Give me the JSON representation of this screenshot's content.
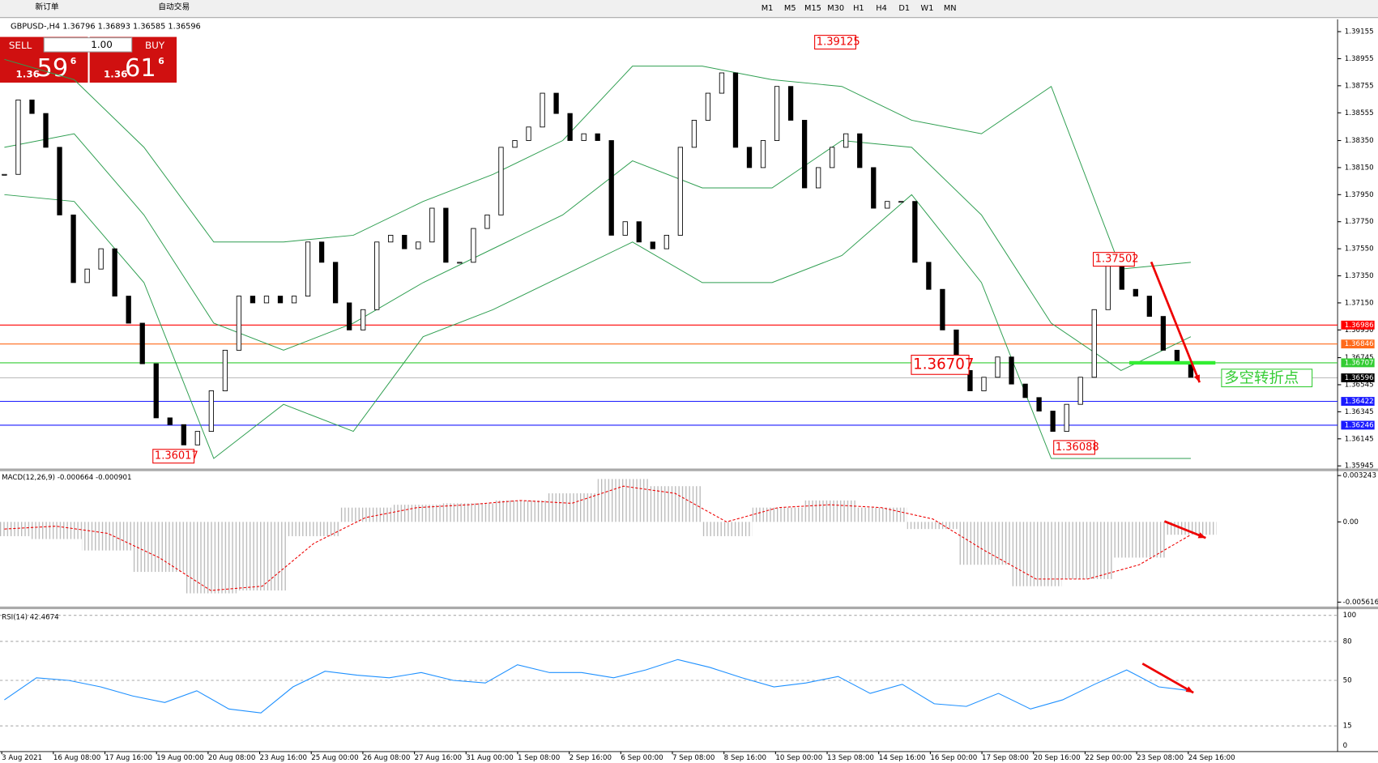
{
  "toolbar": {
    "new_order": "新订单",
    "auto_trade": "自动交易",
    "timeframes": [
      "M1",
      "M5",
      "M15",
      "M30",
      "H1",
      "H4",
      "D1",
      "W1",
      "MN"
    ]
  },
  "trade_panel": {
    "sell": "SELL",
    "buy": "BUY",
    "lots": "1.00",
    "sell_big": "1.36",
    "sell_main": "59",
    "sell_sup": "6",
    "buy_big": "1.36",
    "buy_main": "61",
    "buy_sup": "6"
  },
  "chart_data": {
    "type": "candlestick",
    "header": "GBPUSD-,H4  1.36796 1.36893 1.36585 1.36596",
    "close": [
      1.381,
      1.3865,
      1.3855,
      1.383,
      1.378,
      1.373,
      1.374,
      1.3755,
      1.372,
      1.37,
      1.367,
      1.363,
      1.3625,
      1.361,
      1.362,
      1.365,
      1.368,
      1.372,
      1.3715,
      1.372,
      1.3715,
      1.372,
      1.376,
      1.3745,
      1.3715,
      1.3695,
      1.371,
      1.376,
      1.3765,
      1.3755,
      1.376,
      1.3785,
      1.3745,
      1.3745,
      1.377,
      1.378,
      1.383,
      1.3835,
      1.3845,
      1.387,
      1.3855,
      1.3835,
      1.384,
      1.3835,
      1.3765,
      1.3775,
      1.376,
      1.3755,
      1.3765,
      1.383,
      1.385,
      1.387,
      1.3885,
      1.383,
      1.3815,
      1.3835,
      1.3875,
      1.385,
      1.38,
      1.3815,
      1.383,
      1.384,
      1.3815,
      1.3785,
      1.379,
      1.379,
      1.3745,
      1.3725,
      1.3695,
      1.3665,
      1.365,
      1.366,
      1.3675,
      1.3655,
      1.3645,
      1.3635,
      1.362,
      1.364,
      1.366,
      1.371,
      1.3745,
      1.3725,
      1.372,
      1.3705,
      1.368,
      1.367,
      1.366
    ],
    "bands": {
      "upper": [
        1.3895,
        1.388,
        1.383,
        1.376,
        1.376,
        1.3765,
        1.379,
        1.381,
        1.3835,
        1.389,
        1.389,
        1.388,
        1.3875,
        1.385,
        1.384,
        1.3875,
        1.374,
        1.3745
      ],
      "middle": [
        1.383,
        1.384,
        1.378,
        1.37,
        1.368,
        1.37,
        1.373,
        1.3755,
        1.378,
        1.382,
        1.38,
        1.38,
        1.3835,
        1.383,
        1.378,
        1.37,
        1.3665,
        1.369
      ],
      "lower": [
        1.3795,
        1.379,
        1.373,
        1.36,
        1.364,
        1.362,
        1.369,
        1.371,
        1.3735,
        1.376,
        1.373,
        1.373,
        1.375,
        1.3795,
        1.373,
        1.36,
        1.36,
        1.36
      ]
    },
    "ylim": [
      1.35945,
      1.39155
    ],
    "yticks": [
      1.39155,
      1.38955,
      1.38755,
      1.38555,
      {
        "value": 1.3835,
        "label": "1.38350"
      },
      {
        "value": 1.3815,
        "label": "1.38150"
      },
      {
        "value": 1.3795,
        "label": "1.37950"
      },
      {
        "value": 1.3775,
        "label": "1.37750"
      },
      {
        "value": 1.3755,
        "label": "1.37550"
      },
      {
        "value": 1.3735,
        "label": "1.37350"
      },
      {
        "value": 1.3715,
        "label": "1.37150"
      },
      {
        "value": 1.3695,
        "label": "1.36950"
      },
      1.36745,
      1.36545,
      1.36345,
      1.36145,
      1.35945
    ],
    "levels": [
      {
        "value": 1.36986,
        "color": "#ff0000"
      },
      {
        "value": 1.36846,
        "color": "#ff6a1a"
      },
      {
        "value": 1.36707,
        "color": "#33cc33"
      },
      {
        "value": 1.36596,
        "color": "#000000"
      },
      {
        "value": 1.36422,
        "color": "#1a1aff"
      },
      {
        "value": 1.36246,
        "color": "#1a1aff"
      }
    ],
    "annotations": [
      1.39125,
      1.37502,
      1.36707,
      1.36017,
      1.36088
    ],
    "note": "多空转折点",
    "x_labels": [
      "3 Aug 2021",
      "16 Aug 08:00",
      "17 Aug 16:00",
      "19 Aug 00:00",
      "20 Aug 08:00",
      "23 Aug 16:00",
      "25 Aug 00:00",
      "26 Aug 08:00",
      "27 Aug 16:00",
      "31 Aug 00:00",
      "1 Sep 08:00",
      "2 Sep 16:00",
      "6 Sep 00:00",
      "7 Sep 08:00",
      "8 Sep 16:00",
      "10 Sep 00:00",
      "13 Sep 08:00",
      "14 Sep 16:00",
      "16 Sep 00:00",
      "17 Sep 08:00",
      "20 Sep 16:00",
      "22 Sep 00:00",
      "23 Sep 08:00",
      "24 Sep 16:00"
    ]
  },
  "macd": {
    "header": "MACD(12,26,9) -0.000664 -0.000901",
    "ylim": [
      -0.005616,
      0.003243
    ],
    "yticks": [
      0.003243,
      {
        "value": 0,
        "label": "0.00"
      },
      -0.005616
    ],
    "histogram": [
      -0.001,
      -0.0012,
      -0.002,
      -0.0035,
      -0.005,
      -0.0048,
      -0.001,
      0.001,
      0.0012,
      0.0013,
      0.0015,
      0.002,
      0.003,
      0.0025,
      -0.001,
      0.001,
      0.0015,
      0.001,
      -0.0005,
      -0.003,
      -0.0045,
      -0.004,
      -0.0025,
      -0.0009
    ],
    "signal": [
      -0.0005,
      -0.0003,
      -0.0008,
      -0.0025,
      -0.0048,
      -0.0045,
      -0.0015,
      0.0003,
      0.001,
      0.0012,
      0.0015,
      0.0013,
      0.0025,
      0.002,
      0.0,
      0.001,
      0.0012,
      0.001,
      0.0002,
      -0.002,
      -0.004,
      -0.004,
      -0.003,
      -0.0009
    ]
  },
  "rsi": {
    "header": "RSI(14) 42.4674",
    "ylim": [
      0,
      100
    ],
    "yticks": [
      100,
      80,
      50,
      15
    ],
    "bottom_tick": 0,
    "values": [
      35,
      52,
      50,
      45,
      38,
      33,
      42,
      28,
      25,
      45,
      57,
      54,
      52,
      56,
      50,
      48,
      62,
      56,
      56,
      52,
      58,
      66,
      60,
      52,
      45,
      48,
      53,
      40,
      47,
      32,
      30,
      40,
      28,
      35,
      47,
      58,
      45,
      42
    ]
  }
}
